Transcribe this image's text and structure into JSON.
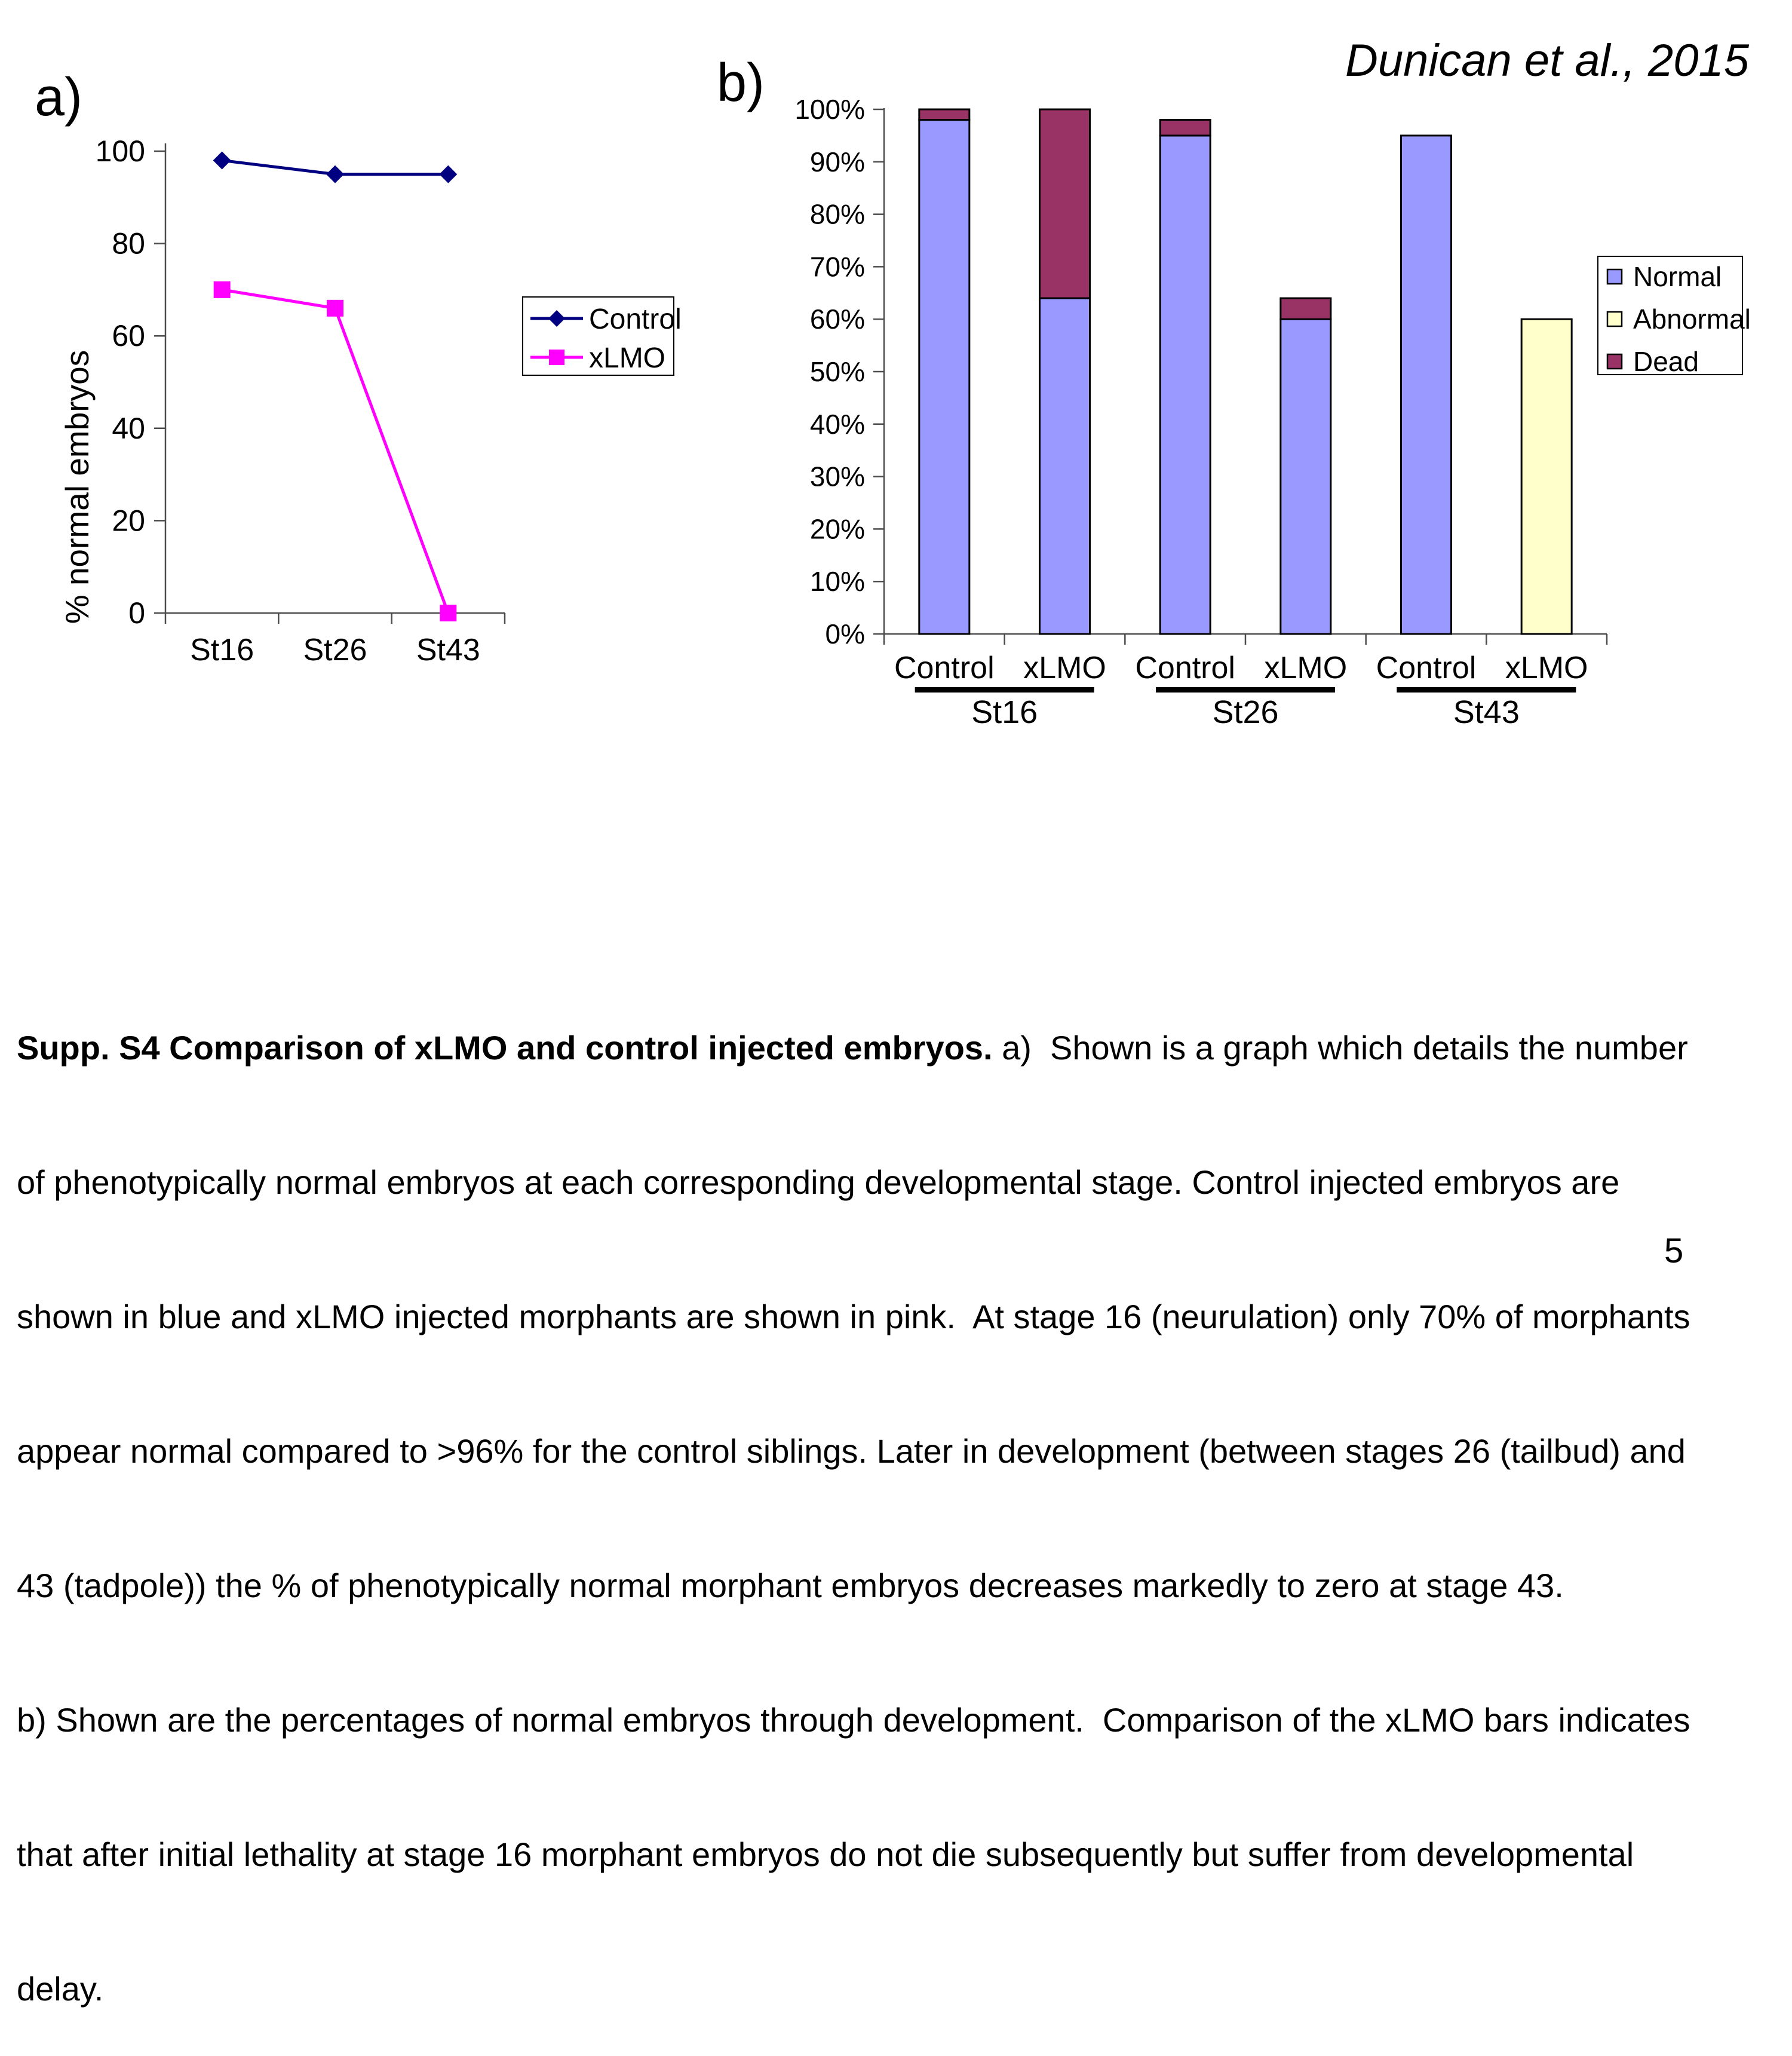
{
  "page": {
    "attribution": "Dunican et al., 2015",
    "page_number": "5"
  },
  "panel_a": {
    "label": "a)"
  },
  "panel_b": {
    "label": "b)"
  },
  "chart_data": [
    {
      "id": "a",
      "type": "line",
      "categories": [
        "St16",
        "St26",
        "St43"
      ],
      "series": [
        {
          "name": "Control",
          "color": "#000080",
          "marker": "diamond",
          "values": [
            98,
            95,
            95
          ]
        },
        {
          "name": "xLMO",
          "color": "#FF00FF",
          "marker": "square",
          "values": [
            70,
            66,
            0
          ]
        }
      ],
      "ylabel": "% normal embryos",
      "ylim": [
        0,
        100
      ],
      "yticks": [
        0,
        20,
        40,
        60,
        80,
        100
      ],
      "grid": false,
      "legend_position": "right"
    },
    {
      "id": "b",
      "type": "stacked-bar",
      "stages": [
        "St16",
        "St26",
        "St43"
      ],
      "series_order": [
        "normal",
        "abnormal",
        "dead"
      ],
      "colors": {
        "normal": "#9999FF",
        "abnormal": "#FFFFCC",
        "dead": "#993366"
      },
      "legend": [
        {
          "name": "Normal",
          "key": "normal"
        },
        {
          "name": "Abnormal",
          "key": "abnormal"
        },
        {
          "name": "Dead",
          "key": "dead"
        }
      ],
      "bars": [
        {
          "stage": "St16",
          "label": "Control",
          "normal": 98,
          "abnormal": 0,
          "dead": 2
        },
        {
          "stage": "St16",
          "label": "xLMO",
          "normal": 64,
          "abnormal": 0,
          "dead": 36
        },
        {
          "stage": "St26",
          "label": "Control",
          "normal": 95,
          "abnormal": 0,
          "dead": 3
        },
        {
          "stage": "St26",
          "label": "xLMO",
          "normal": 60,
          "abnormal": 0,
          "dead": 4
        },
        {
          "stage": "St43",
          "label": "Control",
          "normal": 95,
          "abnormal": 0,
          "dead": 0
        },
        {
          "stage": "St43",
          "label": "xLMO",
          "normal": 0,
          "abnormal": 60,
          "dead": 0
        }
      ],
      "yticks": [
        "0%",
        "10%",
        "20%",
        "30%",
        "40%",
        "50%",
        "60%",
        "70%",
        "80%",
        "90%",
        "100%"
      ],
      "ylim": [
        0,
        100
      ],
      "legend_position": "right"
    }
  ],
  "caption": {
    "lead_bold": "Supp. S4 Comparison of xLMO and control injected embryos.",
    "lines": [
      " a)  Shown is a graph which details the number",
      "of phenotypically normal embryos at each corresponding developmental stage. Control injected embryos are",
      "shown in blue and xLMO injected morphants are shown in pink.  At stage 16 (neurulation) only 70% of morphants",
      "appear normal compared to >96% for the control siblings. Later in development (between stages 26 (tailbud) and",
      "43 (tadpole)) the % of phenotypically normal morphant embryos decreases markedly to zero at stage 43.",
      "b) Shown are the percentages of normal embryos through development.  Comparison of the xLMO bars indicates",
      "that after initial lethality at stage 16 morphant embryos do not die subsequently but suffer from developmental",
      "delay."
    ]
  }
}
